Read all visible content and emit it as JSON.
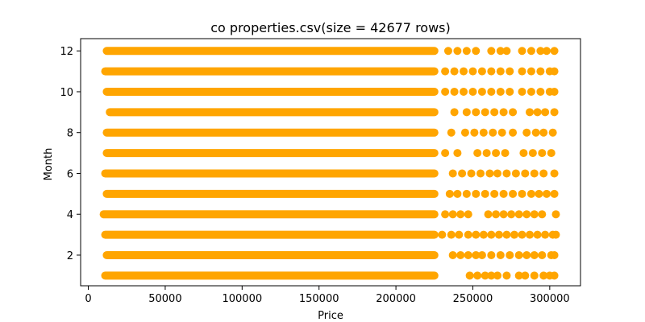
{
  "chart_data": {
    "type": "scatter",
    "title": "co properties.csv(size = 42677 rows)",
    "xlabel": "Price",
    "ylabel": "Month",
    "xlim": [
      -5000,
      320000
    ],
    "ylim": [
      0.5,
      12.6
    ],
    "xticks": [
      0,
      50000,
      100000,
      150000,
      200000,
      250000,
      300000
    ],
    "yticks": [
      2,
      4,
      6,
      8,
      10,
      12
    ],
    "grid": false,
    "marker_color": "#FFA500",
    "series": [
      {
        "months": [
          1,
          2,
          3,
          4,
          5,
          6,
          7,
          8,
          9,
          10,
          11,
          12
        ],
        "dense_range": [
          [
            11000,
            225000
          ],
          [
            12000,
            225000
          ],
          [
            11000,
            225000
          ],
          [
            10000,
            225000
          ],
          [
            12000,
            225000
          ],
          [
            11000,
            225000
          ],
          [
            12000,
            225000
          ],
          [
            12000,
            225000
          ],
          [
            14000,
            225000
          ],
          [
            12000,
            225000
          ],
          [
            11000,
            225000
          ],
          [
            12000,
            225000
          ]
        ],
        "sparse_points": [
          [
            248000,
            253000,
            258000,
            262000,
            266000,
            272000,
            280000,
            284000,
            290000,
            296000,
            300000,
            303000
          ],
          [
            237000,
            242000,
            247000,
            252000,
            256000,
            262000,
            268000,
            274000,
            280000,
            285000,
            290000,
            295000,
            301000,
            303000
          ],
          [
            230000,
            236000,
            241000,
            247000,
            252000,
            257000,
            262000,
            267000,
            272000,
            277000,
            282000,
            287000,
            292000,
            297000,
            302000,
            304000
          ],
          [
            232000,
            237000,
            242000,
            247000,
            260000,
            265000,
            270000,
            275000,
            280000,
            285000,
            290000,
            295000,
            304000
          ],
          [
            235000,
            240000,
            246000,
            252000,
            258000,
            264000,
            270000,
            276000,
            282000,
            288000,
            293000,
            298000,
            303000
          ],
          [
            237000,
            243000,
            249000,
            255000,
            261000,
            266000,
            272000,
            278000,
            284000,
            290000,
            296000,
            303000
          ],
          [
            232000,
            240000,
            253000,
            259000,
            265000,
            271000,
            283000,
            289000,
            295000,
            301000
          ],
          [
            236000,
            245000,
            251000,
            257000,
            263000,
            269000,
            276000,
            285000,
            291000,
            296000,
            302000
          ],
          [
            238000,
            246000,
            252000,
            258000,
            264000,
            270000,
            276000,
            287000,
            292000,
            297000,
            303000
          ],
          [
            232000,
            238000,
            244000,
            250000,
            256000,
            262000,
            268000,
            274000,
            282000,
            288000,
            294000,
            300000,
            303000
          ],
          [
            232000,
            238000,
            244000,
            250000,
            256000,
            262000,
            268000,
            274000,
            282000,
            288000,
            294000,
            300000,
            303000
          ],
          [
            234000,
            240000,
            246000,
            252000,
            262000,
            268000,
            272000,
            282000,
            288000,
            294000,
            298000,
            303000
          ]
        ]
      }
    ]
  }
}
